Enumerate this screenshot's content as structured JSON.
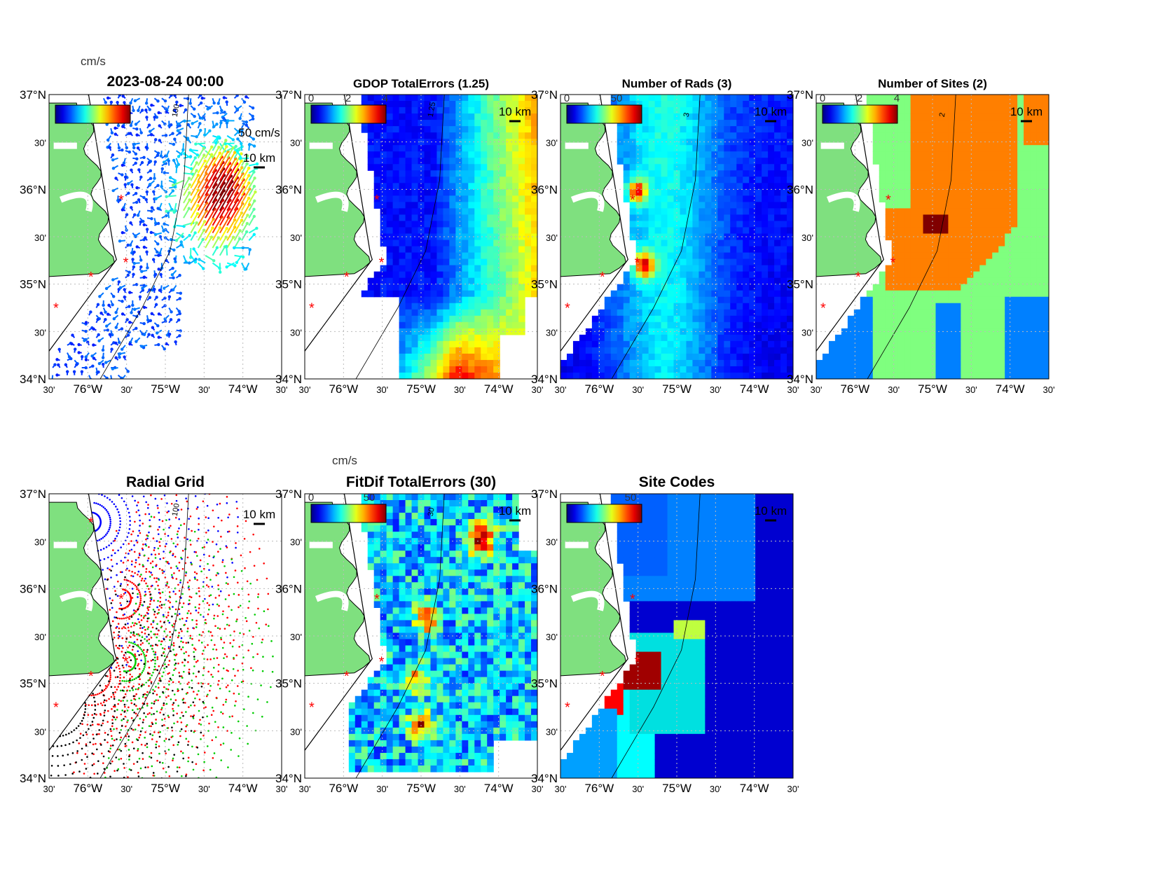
{
  "figure": {
    "lat_ticks": [
      "37°N",
      "30'",
      "36°N",
      "30'",
      "35°N",
      "30'",
      "34°N"
    ],
    "lon_ticks": [
      "30'",
      "76°W",
      "30'",
      "75°W",
      "30'",
      "74°W",
      "30'"
    ],
    "scale_label": "10 km",
    "panels": [
      {
        "id": "currents",
        "title": "2023-08-24 00:00",
        "colorbar_unit": "cm/s",
        "colorbar_ticks": [],
        "extra_label": "50 cm/s",
        "contour_label": "100",
        "type": "vectors"
      },
      {
        "id": "gdop",
        "title": "GDOP TotalErrors (1.25)",
        "colorbar_ticks": [
          "0",
          "2",
          "4"
        ],
        "contour_label": "1.25",
        "type": "heatmap"
      },
      {
        "id": "nrads",
        "title": "Number of Rads (3)",
        "colorbar_ticks": [
          "0",
          "50"
        ],
        "contour_label": "3",
        "type": "heatmap"
      },
      {
        "id": "nsites",
        "title": "Number of Sites (2)",
        "colorbar_ticks": [
          "0",
          "2",
          "4"
        ],
        "contour_label": "2",
        "type": "categorical"
      },
      {
        "id": "radial-grid",
        "title": "Radial Grid",
        "colorbar_ticks": [],
        "contour_label": "100",
        "type": "dots"
      },
      {
        "id": "fitdif",
        "title": "FitDif TotalErrors (30)",
        "colorbar_unit": "cm/s",
        "colorbar_ticks": [
          "0",
          "50"
        ],
        "contour_label": "30",
        "type": "heatmap"
      },
      {
        "id": "site-codes",
        "title": "Site Codes",
        "colorbar_ticks": [
          "50"
        ],
        "type": "categorical"
      }
    ],
    "colors": {
      "land": "#7fe07f",
      "site_marker": "#ff0000"
    }
  }
}
